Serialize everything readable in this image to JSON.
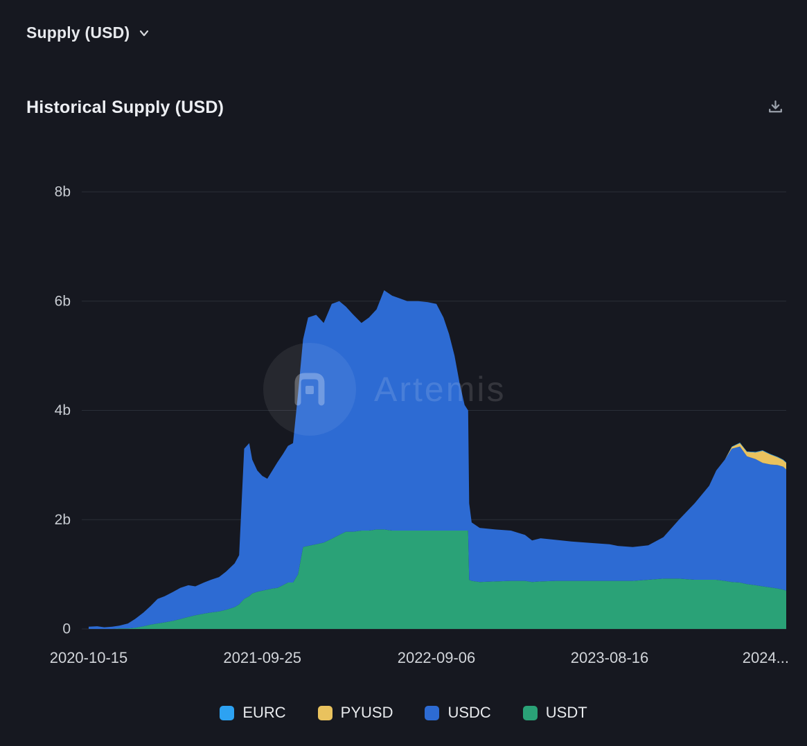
{
  "header": {
    "supply_dropdown_label": "Supply (USD)"
  },
  "chart_header": {
    "title": "Historical Supply (USD)"
  },
  "watermark": {
    "text": "Artemis"
  },
  "colors": {
    "background": "#161820",
    "grid": "#2a2e37",
    "axis_text": "#c9cdd3",
    "x_axis_text": "#d2d5da",
    "icon": "#9aa0aa",
    "legend_text": "#e9ebee"
  },
  "chart_data": {
    "type": "area",
    "stacked": true,
    "title": "Historical Supply (USD)",
    "unit": "b",
    "grid": true,
    "legend_position": "bottom",
    "y_max": 8,
    "y_ticks": [
      {
        "value": 0,
        "label": "0"
      },
      {
        "value": 2,
        "label": "2b"
      },
      {
        "value": 4,
        "label": "4b"
      },
      {
        "value": 6,
        "label": "6b"
      },
      {
        "value": 8,
        "label": "8b"
      }
    ],
    "x_ticks": [
      {
        "date": "2020-10-15",
        "label": "2020-10-15"
      },
      {
        "date": "2021-09-25",
        "label": "2021-09-25"
      },
      {
        "date": "2022-09-06",
        "label": "2022-09-06"
      },
      {
        "date": "2023-08-16",
        "label": "2023-08-16"
      },
      {
        "date": "2024-07-26",
        "label": "2024..."
      }
    ],
    "x": [
      "2020-10-15",
      "2020-11-01",
      "2020-11-15",
      "2020-12-01",
      "2020-12-15",
      "2021-01-01",
      "2021-01-15",
      "2021-02-01",
      "2021-02-15",
      "2021-03-01",
      "2021-03-15",
      "2021-04-01",
      "2021-04-15",
      "2021-05-01",
      "2021-05-15",
      "2021-06-01",
      "2021-06-15",
      "2021-07-01",
      "2021-07-15",
      "2021-08-01",
      "2021-08-10",
      "2021-08-20",
      "2021-08-30",
      "2021-09-05",
      "2021-09-15",
      "2021-09-25",
      "2021-10-05",
      "2021-10-15",
      "2021-10-25",
      "2021-11-05",
      "2021-11-15",
      "2021-11-25",
      "2021-12-05",
      "2021-12-15",
      "2021-12-25",
      "2022-01-10",
      "2022-01-25",
      "2022-02-10",
      "2022-02-25",
      "2022-03-10",
      "2022-03-25",
      "2022-04-10",
      "2022-04-25",
      "2022-05-10",
      "2022-05-25",
      "2022-06-10",
      "2022-06-25",
      "2022-07-10",
      "2022-08-01",
      "2022-08-20",
      "2022-09-06",
      "2022-09-20",
      "2022-10-01",
      "2022-10-12",
      "2022-10-22",
      "2022-11-01",
      "2022-11-08",
      "2022-11-10",
      "2022-11-15",
      "2022-12-01",
      "2023-01-01",
      "2023-02-01",
      "2023-03-01",
      "2023-03-15",
      "2023-04-01",
      "2023-05-01",
      "2023-06-01",
      "2023-07-01",
      "2023-08-01",
      "2023-08-16",
      "2023-09-01",
      "2023-10-01",
      "2023-11-01",
      "2023-12-01",
      "2024-01-01",
      "2024-02-01",
      "2024-03-01",
      "2024-03-15",
      "2024-04-01",
      "2024-04-15",
      "2024-05-01",
      "2024-05-15",
      "2024-06-01",
      "2024-06-15",
      "2024-07-01",
      "2024-07-15",
      "2024-07-26",
      "2024-08-01"
    ],
    "stack_order": [
      "USDT",
      "USDC",
      "PYUSD",
      "EURC"
    ],
    "series": [
      {
        "name": "EURC",
        "color": "#2da2f2",
        "values": [
          0,
          0,
          0,
          0,
          0,
          0,
          0,
          0,
          0,
          0,
          0,
          0,
          0,
          0,
          0,
          0,
          0,
          0,
          0,
          0,
          0,
          0,
          0,
          0,
          0,
          0,
          0,
          0,
          0,
          0,
          0,
          0,
          0,
          0,
          0,
          0,
          0,
          0,
          0,
          0,
          0,
          0,
          0,
          0,
          0,
          0,
          0,
          0,
          0,
          0,
          0,
          0,
          0,
          0,
          0,
          0,
          0,
          0,
          0,
          0,
          0,
          0,
          0,
          0,
          0,
          0,
          0,
          0,
          0,
          0,
          0,
          0,
          0,
          0,
          0,
          0,
          0,
          0,
          0,
          0.01,
          0.01,
          0.01,
          0.01,
          0.01,
          0.01,
          0.01,
          0.01,
          0.01
        ]
      },
      {
        "name": "PYUSD",
        "color": "#e9c25e",
        "values": [
          0,
          0,
          0,
          0,
          0,
          0,
          0,
          0,
          0,
          0,
          0,
          0,
          0,
          0,
          0,
          0,
          0,
          0,
          0,
          0,
          0,
          0,
          0,
          0,
          0,
          0,
          0,
          0,
          0,
          0,
          0,
          0,
          0,
          0,
          0,
          0,
          0,
          0,
          0,
          0,
          0,
          0,
          0,
          0,
          0,
          0,
          0,
          0,
          0,
          0,
          0,
          0,
          0,
          0,
          0,
          0,
          0,
          0,
          0,
          0,
          0,
          0,
          0,
          0,
          0,
          0,
          0,
          0,
          0,
          0,
          0,
          0,
          0,
          0,
          0,
          0,
          0,
          0,
          0,
          0.03,
          0.06,
          0.08,
          0.12,
          0.22,
          0.18,
          0.14,
          0.12,
          0.12
        ]
      },
      {
        "name": "USDC",
        "color": "#2d6bd3",
        "values": [
          0.04,
          0.05,
          0.03,
          0.04,
          0.05,
          0.09,
          0.16,
          0.25,
          0.34,
          0.45,
          0.48,
          0.53,
          0.57,
          0.58,
          0.53,
          0.57,
          0.6,
          0.63,
          0.7,
          0.8,
          0.9,
          2.75,
          2.8,
          2.45,
          2.22,
          2.1,
          2.03,
          2.16,
          2.3,
          2.4,
          2.5,
          2.55,
          3.3,
          3.8,
          4.18,
          4.2,
          4.02,
          4.3,
          4.28,
          4.12,
          3.97,
          3.8,
          3.9,
          4.03,
          4.38,
          4.3,
          4.25,
          4.2,
          4.2,
          4.18,
          4.15,
          3.9,
          3.6,
          3.2,
          2.7,
          2.3,
          2.2,
          1.4,
          1.07,
          0.99,
          0.95,
          0.92,
          0.84,
          0.76,
          0.79,
          0.75,
          0.72,
          0.7,
          0.68,
          0.67,
          0.64,
          0.62,
          0.63,
          0.76,
          1.08,
          1.4,
          1.72,
          2.0,
          2.22,
          2.44,
          2.49,
          2.34,
          2.31,
          2.26,
          2.25,
          2.26,
          2.25,
          2.22
        ]
      },
      {
        "name": "USDT",
        "color": "#2aa277",
        "values": [
          0,
          0,
          0,
          0,
          0.01,
          0.01,
          0.02,
          0.05,
          0.08,
          0.1,
          0.12,
          0.15,
          0.18,
          0.22,
          0.25,
          0.28,
          0.3,
          0.32,
          0.35,
          0.4,
          0.45,
          0.55,
          0.6,
          0.65,
          0.68,
          0.7,
          0.72,
          0.74,
          0.75,
          0.8,
          0.85,
          0.85,
          1.0,
          1.5,
          1.52,
          1.55,
          1.58,
          1.65,
          1.72,
          1.78,
          1.78,
          1.8,
          1.8,
          1.82,
          1.82,
          1.8,
          1.8,
          1.8,
          1.8,
          1.8,
          1.8,
          1.8,
          1.8,
          1.8,
          1.8,
          1.8,
          1.8,
          0.9,
          0.88,
          0.86,
          0.87,
          0.88,
          0.88,
          0.86,
          0.87,
          0.88,
          0.88,
          0.88,
          0.88,
          0.88,
          0.88,
          0.88,
          0.9,
          0.92,
          0.92,
          0.9,
          0.9,
          0.9,
          0.88,
          0.86,
          0.85,
          0.82,
          0.8,
          0.78,
          0.76,
          0.74,
          0.72,
          0.7
        ]
      }
    ]
  }
}
